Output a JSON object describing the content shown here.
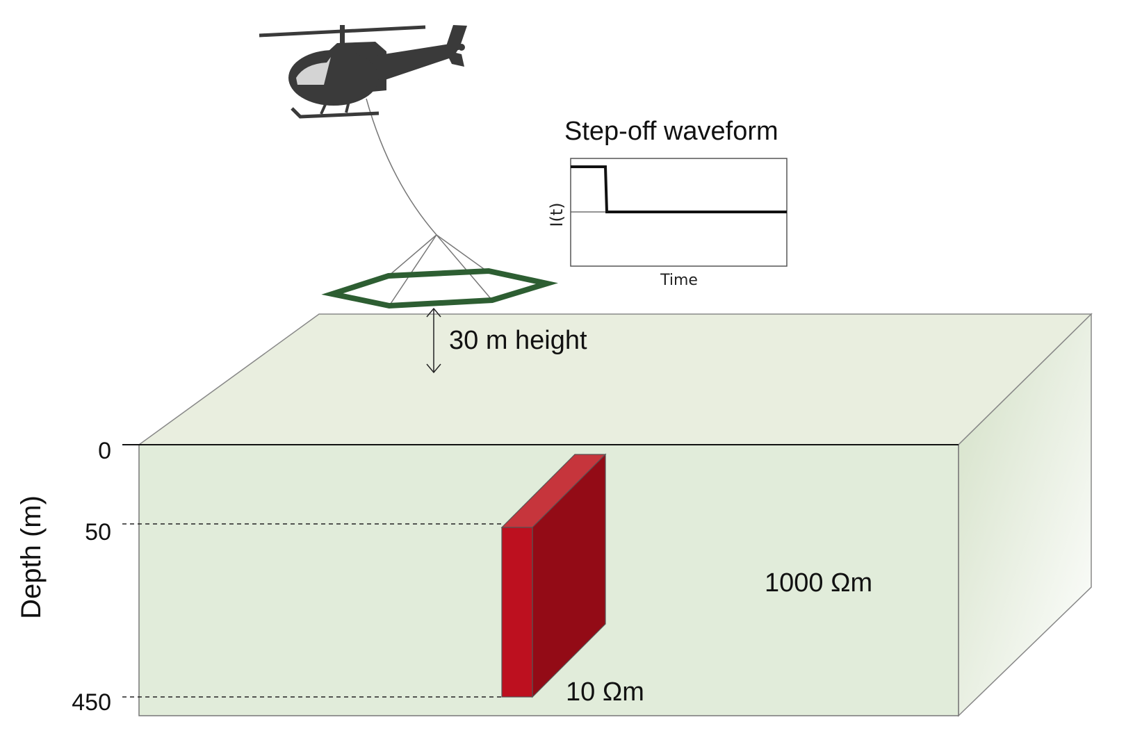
{
  "waveform": {
    "title": "Step-off waveform",
    "ylabel": "I(t)",
    "xlabel": "Time"
  },
  "height_label": "30 m height",
  "depth_axis": {
    "label": "Depth (m)",
    "ticks": [
      "0",
      "50",
      "450"
    ]
  },
  "block": {
    "resistivity_label": "10 Ωm"
  },
  "host": {
    "resistivity_label": "1000 Ωm"
  },
  "colors": {
    "earth_top": "#e9eedf",
    "earth_front": "#e1ecda",
    "earth_side": "#d4e1c7",
    "block_front": "#bd101f",
    "block_side": "#930b16",
    "block_top": "#c6353c",
    "loop": "#2d5e32",
    "helicopter": "#3a3a3a"
  }
}
